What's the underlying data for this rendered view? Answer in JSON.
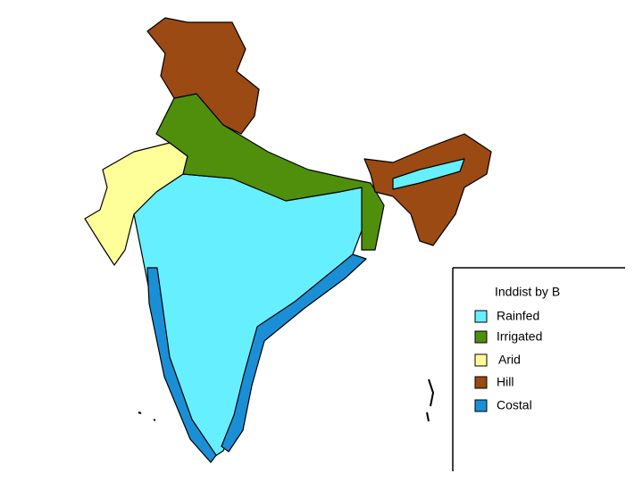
{
  "legend": {
    "title": "Inddist by B",
    "items": [
      {
        "label": "Rainfed",
        "color": "#66f0ff"
      },
      {
        "label": "Irrigated",
        "color": "#4f8f0c"
      },
      {
        "label": "Arid",
        "color": "#ffff99"
      },
      {
        "label": "Hill",
        "color": "#9a4a12"
      },
      {
        "label": "Costal",
        "color": "#1a8fd6"
      }
    ]
  }
}
